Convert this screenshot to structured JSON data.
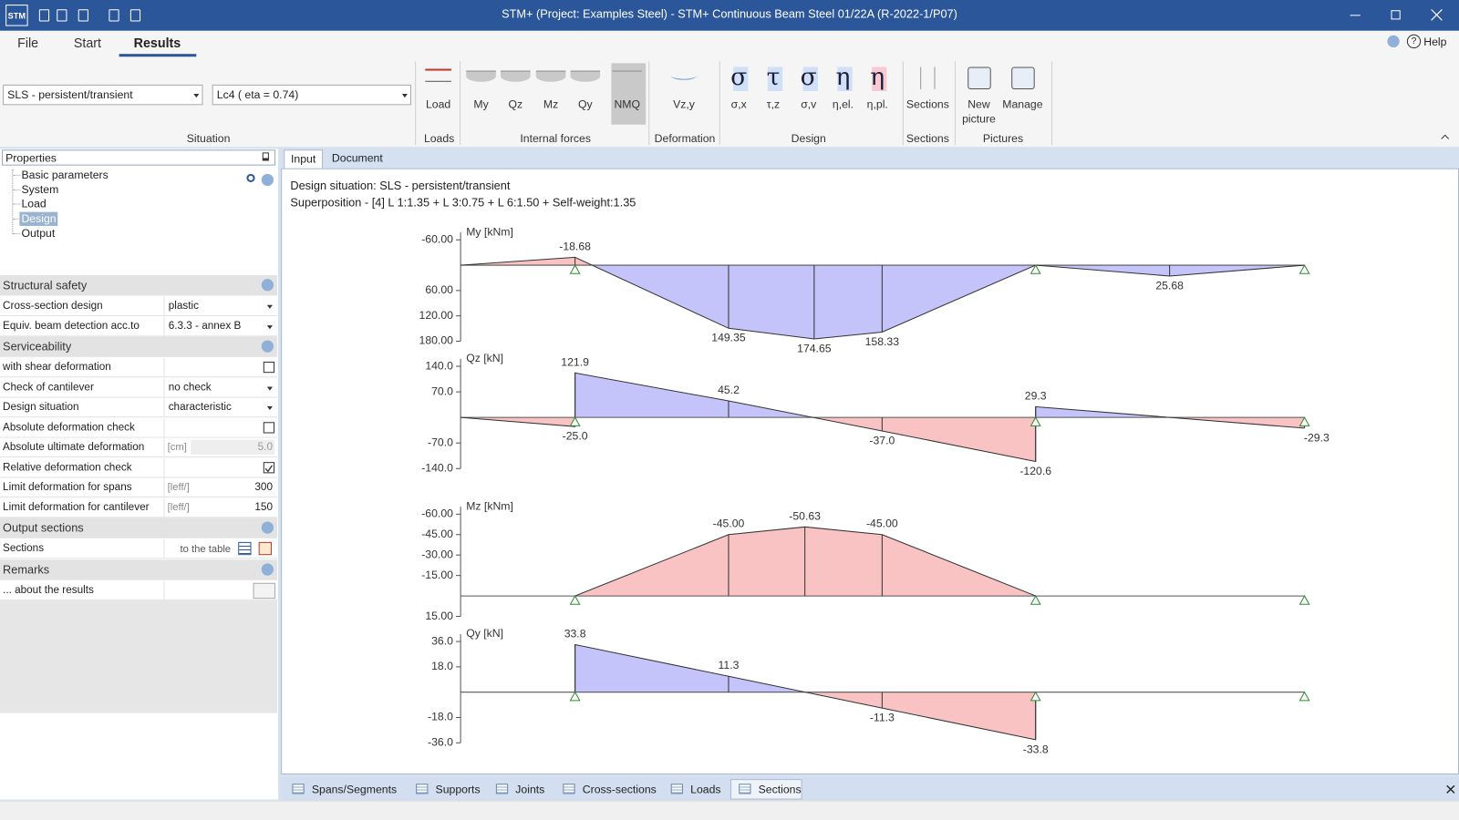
{
  "titlebar": {
    "app_icon": "STM",
    "title": "STM+ (Project: Examples Steel) - STM+ Continuous Beam Steel 01/22A (R-2022-1/P07)"
  },
  "menu": {
    "tabs": [
      "File",
      "Start",
      "Results"
    ],
    "active": 2,
    "help": "Help"
  },
  "ribbon": {
    "situation": [
      "SLS - persistent/transient",
      "Lc4  ( eta = 0.74)"
    ],
    "groups": [
      {
        "label": "Situation",
        "buttons": []
      },
      {
        "label": "Loads",
        "buttons": [
          {
            "label": "Load"
          }
        ]
      },
      {
        "label": "Internal forces",
        "buttons": [
          {
            "label": "My"
          },
          {
            "label": "Qz"
          },
          {
            "label": "Mz"
          },
          {
            "label": "Qy"
          },
          {
            "label": "NMQ",
            "active": true
          }
        ]
      },
      {
        "label": "Deformation",
        "buttons": [
          {
            "label": "Vz,y"
          }
        ]
      },
      {
        "label": "Design",
        "buttons": [
          {
            "icon": "σ",
            "label": "σ,x"
          },
          {
            "icon": "τ",
            "label": "τ,z"
          },
          {
            "icon": "σ",
            "label": "σ,v"
          },
          {
            "icon": "η",
            "label": "η,el."
          },
          {
            "icon": "η",
            "label": "η,pl."
          }
        ]
      },
      {
        "label": "Sections",
        "buttons": [
          {
            "label": "Sections"
          }
        ]
      },
      {
        "label": "Pictures",
        "buttons": [
          {
            "label": "New picture"
          },
          {
            "label": "Manage"
          }
        ]
      }
    ]
  },
  "properties": {
    "title": "Properties",
    "tree": [
      "Basic parameters",
      "System",
      "Load",
      "Design",
      "Output"
    ],
    "selected": 3,
    "sections": [
      {
        "title": "Structural safety",
        "rows": [
          {
            "label": "Cross-section design",
            "value": "plastic",
            "dropdown": true
          },
          {
            "label": "Equiv. beam detection acc.to",
            "value": "6.3.3 - annex B",
            "dropdown": true
          }
        ]
      },
      {
        "title": "Serviceability",
        "rows": [
          {
            "label": "with shear deformation",
            "checkbox": false
          },
          {
            "label": "Check of cantilever",
            "value": "no check",
            "dropdown": true
          },
          {
            "label": "Design situation",
            "value": "characteristic",
            "dropdown": true
          },
          {
            "label": "Absolute deformation check",
            "checkbox": false
          },
          {
            "label": "Absolute ultimate deformation",
            "unit": "[cm]",
            "value": "5.0",
            "disabled": true
          },
          {
            "label": "Relative deformation check",
            "checkbox": true
          },
          {
            "label": "Limit deformation for spans",
            "unit": "[leff/]",
            "value": "300"
          },
          {
            "label": "Limit deformation for cantilever",
            "unit": "[leff/]",
            "value": "150"
          }
        ]
      },
      {
        "title": "Output sections",
        "rows": [
          {
            "label": "Sections",
            "value": "to the table"
          }
        ]
      },
      {
        "title": "Remarks",
        "rows": [
          {
            "label": "... about the results"
          }
        ]
      }
    ]
  },
  "tabs": {
    "items": [
      "Input",
      "Document"
    ],
    "active": 0
  },
  "content": {
    "lines": [
      "Design situation: SLS - persistent/transient",
      "Superposition - [4] L 1:1.35 + L 3:0.75 + L 6:1.50 + Self-weight:1.35"
    ],
    "diagrams": [
      {
        "label": "My [kNm]",
        "ylim": [
          180,
          -60
        ],
        "yticks": [
          {
            "value": -60,
            "label": "-60.00"
          },
          {
            "value": 60,
            "label": "60.00"
          },
          {
            "value": 120,
            "label": "120.00"
          },
          {
            "value": 180,
            "label": "180.00"
          }
        ],
        "values": [
          -18.68,
          149.35,
          174.65,
          158.33,
          25.68
        ]
      },
      {
        "label": "Qz [kN]",
        "ylim": [
          -140,
          140
        ],
        "yticks": [
          {
            "value": 140,
            "label": "140.0"
          },
          {
            "value": 70,
            "label": "70.0"
          },
          {
            "value": -70,
            "label": "-70.0"
          },
          {
            "value": -140,
            "label": "-140.0"
          }
        ],
        "values": [
          -25,
          121.9,
          45.2,
          -37,
          -120.6,
          29.3,
          -29.3
        ],
        "value_labels": [
          "-25.0",
          "121.9",
          "45.2",
          "-37.0",
          "-120.6",
          "29.3",
          "-29.3"
        ]
      },
      {
        "label": "Mz [kNm]",
        "ylim": [
          15,
          -60
        ],
        "yticks": [
          {
            "value": -60,
            "label": "-60.00"
          },
          {
            "value": -45,
            "label": "-45.00"
          },
          {
            "value": -30,
            "label": "-30.00"
          },
          {
            "value": -15,
            "label": "-15.00"
          },
          {
            "value": 15,
            "label": "15.00"
          }
        ],
        "values": [
          -45,
          -50.63,
          -45
        ],
        "value_labels": [
          "-45.00",
          "-50.63",
          "-45.00"
        ]
      },
      {
        "label": "Qy [kN]",
        "ylim": [
          -36,
          36
        ],
        "yticks": [
          {
            "value": 36,
            "label": "36.0"
          },
          {
            "value": 18,
            "label": "18.0"
          },
          {
            "value": -18,
            "label": "-18.0"
          },
          {
            "value": -36,
            "label": "-36.0"
          }
        ],
        "values": [
          33.8,
          11.3,
          -11.3,
          -33.8
        ]
      }
    ]
  },
  "bottom_tabs": {
    "items": [
      "Spans/Segments",
      "Supports",
      "Joints",
      "Cross-sections",
      "Loads",
      "Sections"
    ],
    "active": 5
  }
}
